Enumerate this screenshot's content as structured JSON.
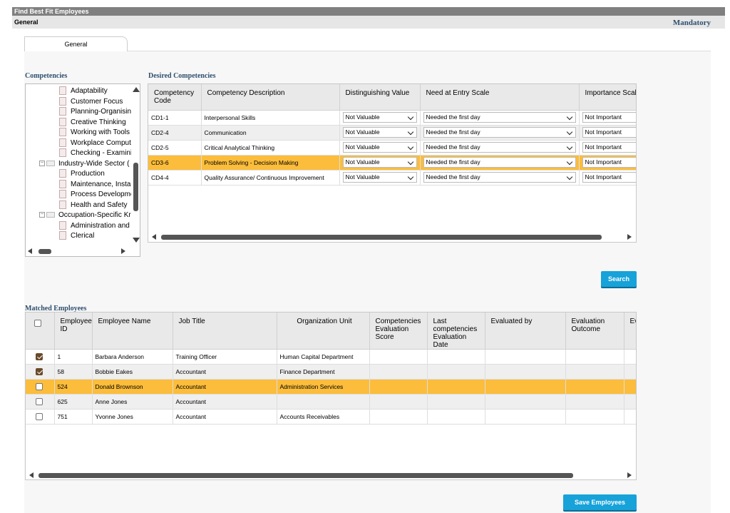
{
  "window": {
    "title": "Find Best Fit Employees",
    "section": "General",
    "mandatory": "Mandatory"
  },
  "tabs": [
    {
      "label": "General"
    }
  ],
  "competencies": {
    "title": "Competencies",
    "tree": [
      {
        "label": "Adaptability",
        "type": "leaf"
      },
      {
        "label": "Customer Focus",
        "type": "leaf"
      },
      {
        "label": "Planning-Organisin",
        "type": "leaf"
      },
      {
        "label": "Creative Thinking",
        "type": "leaf"
      },
      {
        "label": "Working with Tools",
        "type": "leaf"
      },
      {
        "label": "Workplace Computi",
        "type": "leaf"
      },
      {
        "label": "Checking - Examini",
        "type": "leaf"
      },
      {
        "label": "Industry-Wide Sector (",
        "type": "folder"
      },
      {
        "label": "Production",
        "type": "leaf"
      },
      {
        "label": "Maintenance, Insta",
        "type": "leaf"
      },
      {
        "label": "Process Developme",
        "type": "leaf"
      },
      {
        "label": "Health and Safety",
        "type": "leaf"
      },
      {
        "label": "Occupation-Specific Kr",
        "type": "folder"
      },
      {
        "label": "Administration and",
        "type": "leaf"
      },
      {
        "label": "Clerical",
        "type": "leaf"
      }
    ]
  },
  "desired": {
    "title": "Desired Competencies",
    "columns": [
      "Competency Code",
      "Competency Description",
      "Distinguishing Value",
      "Need at Entry Scale",
      "Importance Scale"
    ],
    "rows": [
      {
        "code": "CD1-1",
        "desc": "Interpersonal Skills",
        "dist": "Not Valuable",
        "need": "Needed the first day",
        "imp": "Not Important"
      },
      {
        "code": "CD2-4",
        "desc": "Communication",
        "dist": "Not Valuable",
        "need": "Needed the first day",
        "imp": "Not Important"
      },
      {
        "code": "CD2-5",
        "desc": "Critical Analytical Thinking",
        "dist": "Not Valuable",
        "need": "Needed the first day",
        "imp": "Not Important"
      },
      {
        "code": "CD3-6",
        "desc": "Problem Solving - Decision Making",
        "dist": "Not Valuable",
        "need": "Needed the first day",
        "imp": "Not Important"
      },
      {
        "code": "CD4-4",
        "desc": "Quality Assurance/ Continuous Improvement",
        "dist": "Not Valuable",
        "need": "Needed the first day",
        "imp": "Not Important"
      }
    ]
  },
  "search_label": "Search",
  "matched": {
    "title": "Matched Employees",
    "columns": [
      "Employee ID",
      "Employee Name",
      "Job Title",
      "Organization Unit",
      "Competencies Evaluation Score",
      "Last competencies Evaluation Date",
      "Evaluated by",
      "Evaluation Outcome",
      "Ev Re"
    ],
    "rows": [
      {
        "checked": true,
        "id": "1",
        "name": "Barbara Anderson",
        "job": "Training Officer",
        "unit": "Human Capital Department"
      },
      {
        "checked": true,
        "id": "58",
        "name": "Bobbie Eakes",
        "job": "Accountant",
        "unit": "Finance Department"
      },
      {
        "checked": false,
        "id": "524",
        "name": "Donald Brownson",
        "job": "Accountant",
        "unit": "Administration Services"
      },
      {
        "checked": false,
        "id": "625",
        "name": "Anne Jones",
        "job": "Accountant",
        "unit": ""
      },
      {
        "checked": false,
        "id": "751",
        "name": "Yvonne Jones",
        "job": "Accountant",
        "unit": "Accounts Receivables"
      }
    ]
  },
  "save_label": "Save Employees",
  "colors": {
    "accent": "#17a2d9",
    "selected_row": "#fbbd3b",
    "section_title": "#2e4f6e"
  }
}
